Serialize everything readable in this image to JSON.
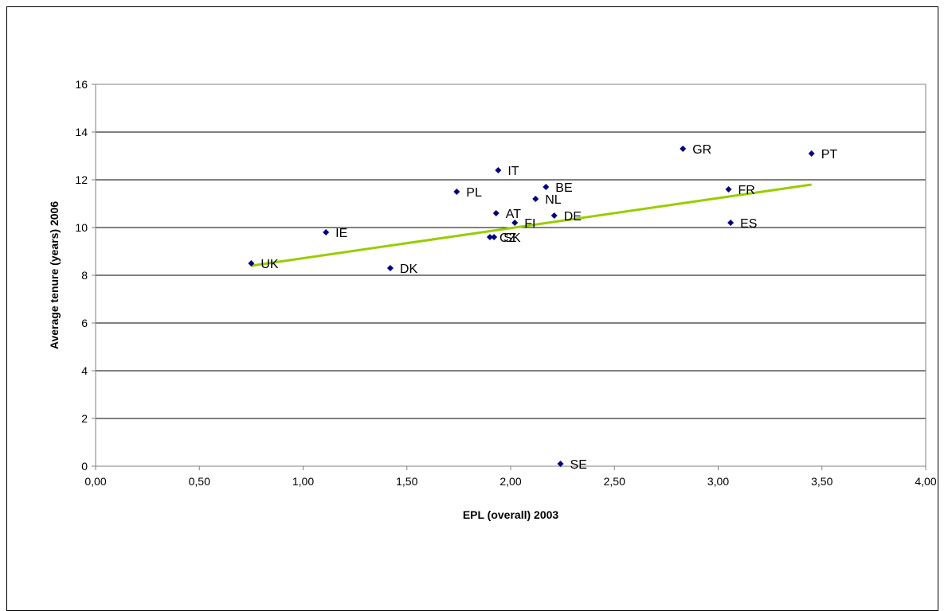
{
  "chart_data": {
    "type": "scatter",
    "title": "",
    "xlabel": "EPL (overall) 2003",
    "ylabel": "Average tenure (years) 2006",
    "xlim": [
      0,
      4
    ],
    "ylim": [
      0,
      16
    ],
    "x_ticks": [
      "0,00",
      "0,50",
      "1,00",
      "1,50",
      "2,00",
      "2,50",
      "3,00",
      "3,50",
      "4,00"
    ],
    "y_ticks": [
      "0",
      "2",
      "4",
      "6",
      "8",
      "10",
      "12",
      "14",
      "16"
    ],
    "grid": "horizontal",
    "legend": "none",
    "marker_color": "#000080",
    "trendline_color": "#99CC00",
    "points": [
      {
        "label": "UK",
        "x": 0.75,
        "y": 8.5
      },
      {
        "label": "IE",
        "x": 1.11,
        "y": 9.8
      },
      {
        "label": "DK",
        "x": 1.42,
        "y": 8.3
      },
      {
        "label": "PL",
        "x": 1.74,
        "y": 11.5
      },
      {
        "label": "CZ",
        "x": 1.9,
        "y": 9.6
      },
      {
        "label": "SK",
        "x": 1.92,
        "y": 9.6
      },
      {
        "label": "AT",
        "x": 1.93,
        "y": 10.6
      },
      {
        "label": "IT",
        "x": 1.94,
        "y": 12.4
      },
      {
        "label": "FI",
        "x": 2.02,
        "y": 10.2
      },
      {
        "label": "NL",
        "x": 2.12,
        "y": 11.2
      },
      {
        "label": "BE",
        "x": 2.17,
        "y": 11.7
      },
      {
        "label": "DE",
        "x": 2.21,
        "y": 10.5
      },
      {
        "label": "SE",
        "x": 2.24,
        "y": 0.1
      },
      {
        "label": "GR",
        "x": 2.83,
        "y": 13.3
      },
      {
        "label": "FR",
        "x": 3.05,
        "y": 11.6
      },
      {
        "label": "ES",
        "x": 3.06,
        "y": 10.2
      },
      {
        "label": "PT",
        "x": 3.45,
        "y": 13.1
      }
    ],
    "trendline": {
      "x": [
        0.75,
        3.45
      ],
      "y": [
        8.4,
        11.8
      ]
    }
  }
}
